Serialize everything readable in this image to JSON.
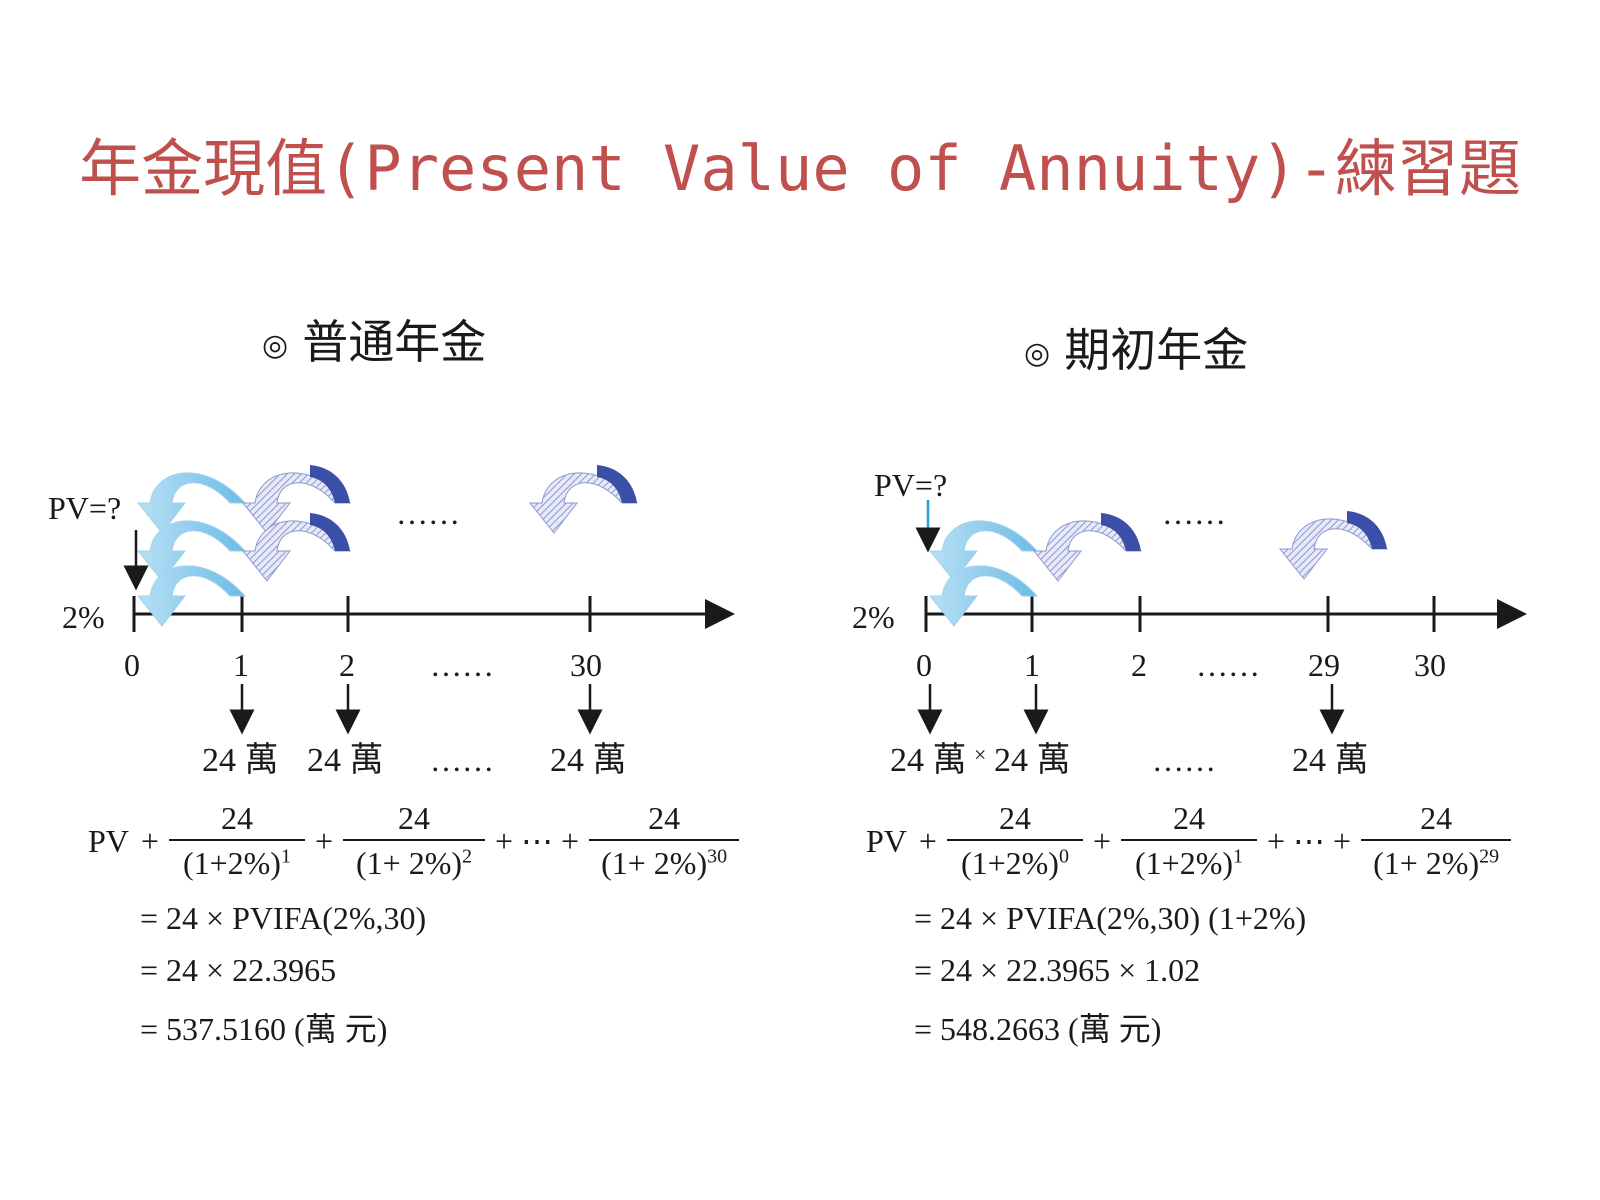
{
  "title": "年金現值(Present Value of Annuity)-練習題",
  "left": {
    "heading_bullet": "◎",
    "heading": "普通年金",
    "pv_label": "PV=?",
    "rate": "2%",
    "ticks": [
      "0",
      "1",
      "2",
      "……",
      "30"
    ],
    "payments": [
      "24 萬",
      "24 萬",
      "……",
      "24 萬"
    ],
    "top_ellipsis": "……",
    "formula": {
      "pv": "PV",
      "plus": "+",
      "dots": "+ ⋯ +",
      "terms": [
        {
          "num": "24",
          "den": "(1+2%)",
          "exp": "1"
        },
        {
          "num": "24",
          "den": "(1+ 2%)",
          "exp": "2"
        },
        {
          "num": "24",
          "den": "(1+ 2%)",
          "exp": "30"
        }
      ],
      "lines": [
        "= 24 × PVIFA(2%,30)",
        "= 24 × 22.3965",
        "= 537.5160 (萬 元)"
      ]
    }
  },
  "right": {
    "heading_bullet": "◎",
    "heading": "期初年金",
    "pv_label": "PV=?",
    "rate": "2%",
    "ticks": [
      "0",
      "1",
      "2",
      "……",
      "29",
      "30"
    ],
    "payments": [
      "24 萬",
      "×",
      "24 萬",
      "……",
      "24 萬"
    ],
    "top_ellipsis": "……",
    "formula": {
      "pv": "PV",
      "plus": "+",
      "dots": "+ ⋯ +",
      "terms": [
        {
          "num": "24",
          "den": "(1+2%)",
          "exp": "0"
        },
        {
          "num": "24",
          "den": "(1+2%)",
          "exp": "1"
        },
        {
          "num": "24",
          "den": "(1+ 2%)",
          "exp": "29"
        }
      ],
      "lines": [
        "= 24 × PVIFA(2%,30)   (1+2%)",
        "= 24 × 22.3965 × 1.02",
        "= 548.2663 (萬 元)"
      ]
    }
  },
  "colors": {
    "title": "#c0504d",
    "arrow_light": "#7cc3e8",
    "arrow_dark": "#3b4fa8",
    "arrow_hatch": "#8f97cf"
  }
}
